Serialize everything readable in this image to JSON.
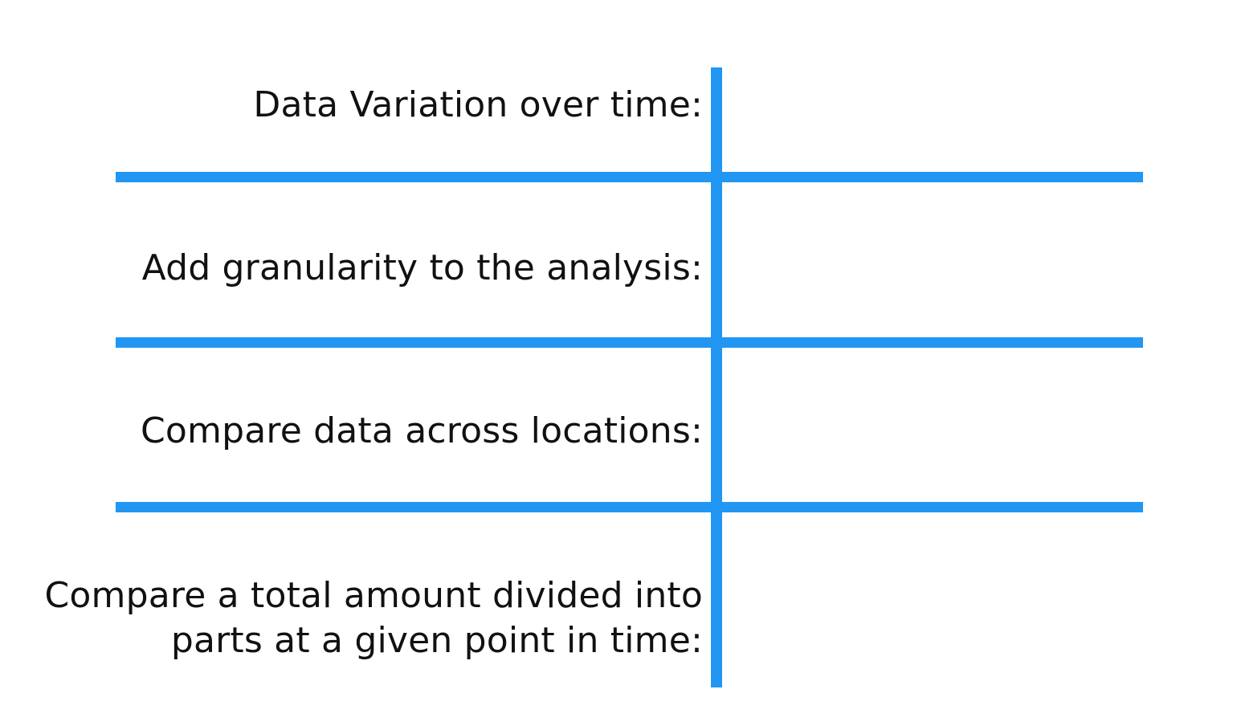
{
  "rows": [
    {
      "label_lines": [
        "Data Variation over time:"
      ]
    },
    {
      "label_lines": [
        "Add granularity to the analysis:"
      ]
    },
    {
      "label_lines": [
        "Compare data across locations:"
      ]
    },
    {
      "label_lines": [
        "Compare a total amount divided into",
        "parts at a given point in time:"
      ]
    }
  ],
  "colors": {
    "grid_line": "#2196f3",
    "text": "#111111",
    "background": "#ffffff"
  }
}
